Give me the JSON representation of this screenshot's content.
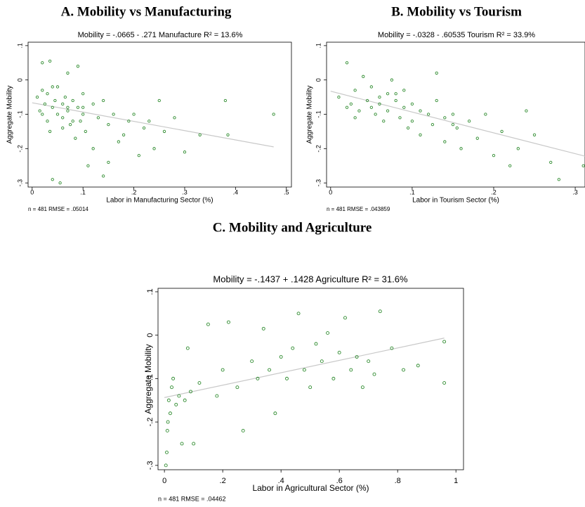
{
  "chart_data": [
    {
      "type": "scatter",
      "title": "A.  Mobility vs Manufacturing",
      "subtitle": "Mobility = -.0665 - .271 Manufacture    R² = 13.6%",
      "x_label": "Labor in Manufacturing Sector (%)",
      "y_label": "Aggregate Mobility",
      "footnote": "n = 481    RMSE = .05014",
      "color": "#2e8b2e",
      "fit_color": "#c8c8c8",
      "xlim": [
        -0.008,
        0.51
      ],
      "ylim": [
        -0.312,
        0.11
      ],
      "xticks": [
        0,
        {
          "value": 0.1,
          "label": ".1"
        },
        {
          "value": 0.2,
          "label": ".2"
        },
        {
          "value": 0.3,
          "label": ".3"
        },
        {
          "value": 0.4,
          "label": ".4"
        },
        {
          "value": 0.5,
          "label": ".5"
        }
      ],
      "yticks": [
        {
          "value": 0.1,
          "label": ".1"
        },
        0,
        {
          "value": -0.1,
          "label": "-.1"
        },
        {
          "value": -0.2,
          "label": "-.2"
        },
        {
          "value": -0.3,
          "label": "-.3"
        }
      ],
      "x": [
        0.01,
        0.015,
        0.02,
        0.02,
        0.025,
        0.03,
        0.03,
        0.035,
        0.04,
        0.04,
        0.045,
        0.05,
        0.05,
        0.055,
        0.06,
        0.06,
        0.065,
        0.07,
        0.07,
        0.075,
        0.08,
        0.085,
        0.09,
        0.09,
        0.095,
        0.1,
        0.1,
        0.105,
        0.11,
        0.12,
        0.12,
        0.13,
        0.14,
        0.15,
        0.15,
        0.16,
        0.17,
        0.18,
        0.19,
        0.2,
        0.21,
        0.22,
        0.23,
        0.24,
        0.25,
        0.26,
        0.28,
        0.3,
        0.33,
        0.38,
        0.385,
        0.475,
        0.035,
        0.04,
        0.08,
        0.1,
        0.14,
        0.02,
        0.06,
        0.07
      ],
      "values": [
        -0.05,
        -0.09,
        -0.03,
        0.05,
        -0.07,
        -0.12,
        -0.04,
        0.055,
        -0.08,
        -0.29,
        -0.06,
        -0.1,
        -0.02,
        -0.3,
        -0.07,
        -0.11,
        -0.05,
        -0.09,
        0.02,
        -0.13,
        -0.06,
        -0.17,
        -0.08,
        0.04,
        -0.12,
        -0.1,
        -0.04,
        -0.15,
        -0.25,
        -0.07,
        -0.2,
        -0.11,
        -0.28,
        -0.13,
        -0.24,
        -0.1,
        -0.18,
        -0.16,
        -0.12,
        -0.1,
        -0.22,
        -0.14,
        -0.12,
        -0.2,
        -0.06,
        -0.15,
        -0.11,
        -0.21,
        -0.16,
        -0.06,
        -0.16,
        -0.1,
        -0.15,
        -0.02,
        -0.12,
        -0.08,
        -0.06,
        -0.1,
        -0.14,
        -0.08
      ],
      "fit_line": {
        "x": [
          0,
          0.475
        ],
        "y": [
          -0.0665,
          -0.195
        ]
      }
    },
    {
      "type": "scatter",
      "title": "B. Mobility vs Tourism",
      "subtitle": "Mobility = -.0328 - .60535 Tourism    R² = 33.9%",
      "x_label": "Labor in Tourism Sector (%)",
      "y_label": "Aggregate Mobility",
      "footnote": "n = 481    RMSE = .043859",
      "color": "#2e8b2e",
      "fit_color": "#c8c8c8",
      "xlim": [
        -0.005,
        0.312
      ],
      "ylim": [
        -0.312,
        0.11
      ],
      "xticks": [
        0,
        {
          "value": 0.1,
          "label": ".1"
        },
        {
          "value": 0.2,
          "label": ".2"
        },
        {
          "value": 0.3,
          "label": ".3"
        }
      ],
      "yticks": [
        {
          "value": 0.1,
          "label": ".1"
        },
        0,
        {
          "value": -0.1,
          "label": "-.1"
        },
        {
          "value": -0.2,
          "label": "-.2"
        },
        {
          "value": -0.3,
          "label": "-.3"
        }
      ],
      "x": [
        0.01,
        0.02,
        0.025,
        0.03,
        0.035,
        0.04,
        0.045,
        0.05,
        0.05,
        0.055,
        0.06,
        0.065,
        0.07,
        0.07,
        0.075,
        0.08,
        0.085,
        0.09,
        0.09,
        0.095,
        0.1,
        0.1,
        0.11,
        0.11,
        0.12,
        0.125,
        0.13,
        0.14,
        0.14,
        0.15,
        0.155,
        0.16,
        0.17,
        0.18,
        0.19,
        0.2,
        0.21,
        0.22,
        0.23,
        0.24,
        0.25,
        0.27,
        0.28,
        0.31,
        0.02,
        0.06,
        0.08,
        0.13,
        0.03,
        0.15
      ],
      "values": [
        -0.05,
        0.05,
        -0.07,
        -0.03,
        -0.09,
        0.01,
        -0.06,
        -0.08,
        -0.02,
        -0.1,
        -0.07,
        -0.12,
        -0.04,
        -0.09,
        0,
        -0.06,
        -0.11,
        -0.08,
        -0.03,
        -0.14,
        -0.07,
        -0.12,
        -0.09,
        -0.16,
        -0.1,
        -0.13,
        -0.06,
        -0.11,
        -0.18,
        -0.1,
        -0.14,
        -0.2,
        -0.12,
        -0.17,
        -0.1,
        -0.22,
        -0.15,
        -0.25,
        -0.2,
        -0.09,
        -0.16,
        -0.24,
        -0.29,
        -0.25,
        -0.08,
        -0.05,
        -0.04,
        0.02,
        -0.11,
        -0.13
      ],
      "fit_line": {
        "x": [
          0,
          0.312
        ],
        "y": [
          -0.0328,
          -0.222
        ]
      }
    },
    {
      "type": "scatter",
      "title": "C. Mobility and Agriculture",
      "subtitle": "Mobility = -.1437 + .1428 Agriculture    R² = 31.6%",
      "x_label": "Labor in Agricultural Sector (%)",
      "y_label": "Aggregate Mobility",
      "footnote": "n = 481    RMSE = .04462",
      "color": "#2e8b2e",
      "fit_color": "#c8c8c8",
      "xlim": [
        -0.022,
        1.026
      ],
      "ylim": [
        -0.31,
        0.108
      ],
      "xticks": [
        0,
        {
          "value": 0.2,
          "label": ".2"
        },
        {
          "value": 0.4,
          "label": ".4"
        },
        {
          "value": 0.6,
          "label": ".6"
        },
        {
          "value": 0.8,
          "label": ".8"
        },
        1
      ],
      "yticks": [
        {
          "value": 0.1,
          "label": ".1"
        },
        0,
        {
          "value": -0.1,
          "label": "-.1"
        },
        {
          "value": -0.2,
          "label": "-.2"
        },
        {
          "value": -0.3,
          "label": "-.3"
        }
      ],
      "x": [
        0.005,
        0.008,
        0.01,
        0.012,
        0.015,
        0.02,
        0.025,
        0.03,
        0.04,
        0.05,
        0.06,
        0.08,
        0.1,
        0.12,
        0.15,
        0.18,
        0.2,
        0.22,
        0.25,
        0.27,
        0.3,
        0.32,
        0.34,
        0.36,
        0.38,
        0.4,
        0.42,
        0.44,
        0.46,
        0.48,
        0.5,
        0.52,
        0.54,
        0.56,
        0.58,
        0.6,
        0.62,
        0.64,
        0.66,
        0.68,
        0.7,
        0.72,
        0.74,
        0.78,
        0.82,
        0.87,
        0.96,
        0.96,
        0.07,
        0.09
      ],
      "values": [
        -0.3,
        -0.27,
        -0.22,
        -0.2,
        -0.15,
        -0.18,
        -0.12,
        -0.1,
        -0.16,
        -0.14,
        -0.25,
        -0.03,
        -0.25,
        -0.11,
        0.025,
        -0.14,
        -0.08,
        0.03,
        -0.12,
        -0.22,
        -0.06,
        -0.1,
        0.015,
        -0.08,
        -0.18,
        -0.05,
        -0.1,
        -0.03,
        0.05,
        -0.08,
        -0.12,
        -0.02,
        -0.06,
        0.005,
        -0.1,
        -0.04,
        0.04,
        -0.08,
        -0.05,
        -0.12,
        -0.06,
        -0.09,
        0.055,
        -0.03,
        -0.08,
        -0.07,
        -0.015,
        -0.11,
        -0.15,
        -0.13
      ],
      "fit_line": {
        "x": [
          0,
          0.96
        ],
        "y": [
          -0.1437,
          -0.0066
        ]
      }
    }
  ]
}
